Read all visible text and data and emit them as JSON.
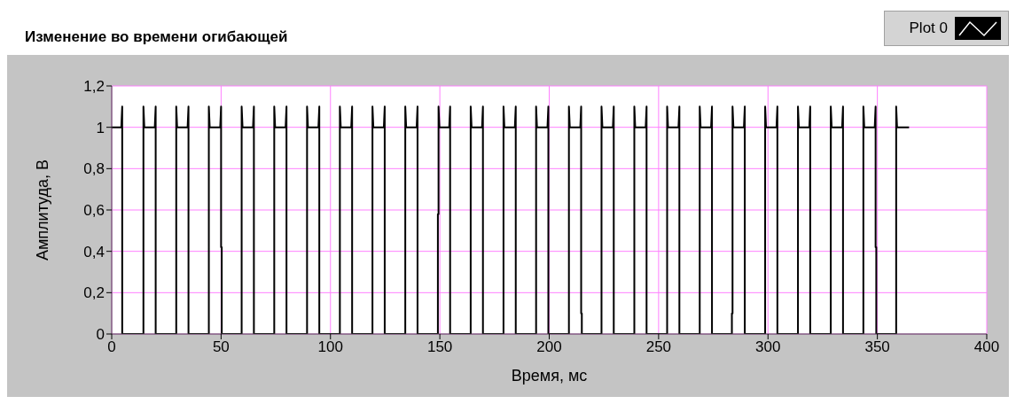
{
  "chart_data": {
    "type": "line",
    "title": "Изменение во времени огибающей",
    "xlabel": "Время, мс",
    "ylabel": "Амплитуда, В",
    "legend": "top right",
    "grid": true,
    "line_style": "solid",
    "marker": "none",
    "xlim": [
      0,
      400
    ],
    "xticks": [
      0,
      50,
      100,
      150,
      200,
      250,
      300,
      350,
      400
    ],
    "ylim": [
      0,
      1.2
    ],
    "yticks": [
      0,
      {
        "value": 0.2,
        "label": "0,2"
      },
      {
        "value": 0.4,
        "label": "0,4"
      },
      {
        "value": 0.6,
        "label": "0,6"
      },
      {
        "value": 0.8,
        "label": "0,8"
      },
      1,
      {
        "value": 1.2,
        "label": "1,2"
      }
    ],
    "x": [
      0,
      4.4,
      4.8,
      4.8,
      14.5,
      14.5,
      14.9,
      19.7,
      20.1,
      20.1,
      29.5,
      29.5,
      29.9,
      34.7,
      35.1,
      35.1,
      44.4,
      44.4,
      44.8,
      49.6,
      50.0,
      50.0,
      50.3,
      50.3,
      59.4,
      59.4,
      59.8,
      64.6,
      65.0,
      65.0,
      74.3,
      74.3,
      74.7,
      79.5,
      79.9,
      79.9,
      89.3,
      89.3,
      89.7,
      94.5,
      94.9,
      94.9,
      104.3,
      104.3,
      104.7,
      109.5,
      109.9,
      109.9,
      119.2,
      119.2,
      119.6,
      124.4,
      124.8,
      124.8,
      134.2,
      134.2,
      134.6,
      139.4,
      139.8,
      139.8,
      149.1,
      149.1,
      149.4,
      149.4,
      149.8,
      154.3,
      154.7,
      154.7,
      164.1,
      164.1,
      164.5,
      169.3,
      169.7,
      169.7,
      179.1,
      179.1,
      179.5,
      184.3,
      184.7,
      184.7,
      194.0,
      194.0,
      194.4,
      199.2,
      199.6,
      199.6,
      209.0,
      209.0,
      209.4,
      214.2,
      214.6,
      214.6,
      214.9,
      214.9,
      223.9,
      223.9,
      224.3,
      229.1,
      229.5,
      229.5,
      238.9,
      238.9,
      239.3,
      244.1,
      244.5,
      244.5,
      253.9,
      253.9,
      254.3,
      259.1,
      259.5,
      259.5,
      268.8,
      268.8,
      269.2,
      274.0,
      274.4,
      274.4,
      283.5,
      283.5,
      283.8,
      283.8,
      284.2,
      289.0,
      289.4,
      289.4,
      298.7,
      298.7,
      299.1,
      303.9,
      304.3,
      304.3,
      313.7,
      313.7,
      314.1,
      318.9,
      319.3,
      319.3,
      328.7,
      328.7,
      329.1,
      333.9,
      334.3,
      334.3,
      343.6,
      343.6,
      344.0,
      348.8,
      349.2,
      349.2,
      349.5,
      349.5,
      358.6,
      358.6,
      359.0,
      364.5
    ],
    "series": [
      {
        "name": "Plot 0",
        "color": "#000000",
        "values": [
          1,
          1,
          1.1,
          0,
          0,
          1.1,
          1,
          1,
          1.1,
          0,
          0,
          1.1,
          1,
          1,
          1.1,
          0,
          0,
          1.1,
          1,
          1,
          1.1,
          0.42,
          0.42,
          0,
          0,
          1.1,
          1,
          1,
          1.1,
          0,
          0,
          1.1,
          1,
          1,
          1.1,
          0,
          0,
          1.1,
          1,
          1,
          1.1,
          0,
          0,
          1.1,
          1,
          1,
          1.1,
          0,
          0,
          1.1,
          1,
          1,
          1.1,
          0,
          0,
          1.1,
          1,
          1,
          1.1,
          0,
          0,
          0.58,
          0.58,
          1.1,
          1,
          1,
          1.1,
          0,
          0,
          1.1,
          1,
          1,
          1.1,
          0,
          0,
          1.1,
          1,
          1,
          1.1,
          0,
          0,
          1.1,
          1,
          1,
          1.1,
          0,
          0,
          1.1,
          1,
          1,
          1.1,
          0.1,
          0.1,
          0,
          0,
          1.1,
          1,
          1,
          1.1,
          0,
          0,
          1.1,
          1,
          1,
          1.1,
          0,
          0,
          1.1,
          1,
          1,
          1.1,
          0,
          0,
          1.1,
          1,
          1,
          1.1,
          0,
          0,
          0.1,
          0.1,
          1.1,
          1,
          1,
          1.1,
          0,
          0,
          1.1,
          1,
          1,
          1.1,
          0,
          0,
          1.1,
          1,
          1,
          1.1,
          0,
          0,
          1.1,
          1,
          1,
          1.1,
          0,
          0,
          1.1,
          1,
          1,
          1.1,
          0.42,
          0.42,
          0,
          0,
          1.1,
          1,
          1
        ]
      }
    ]
  }
}
